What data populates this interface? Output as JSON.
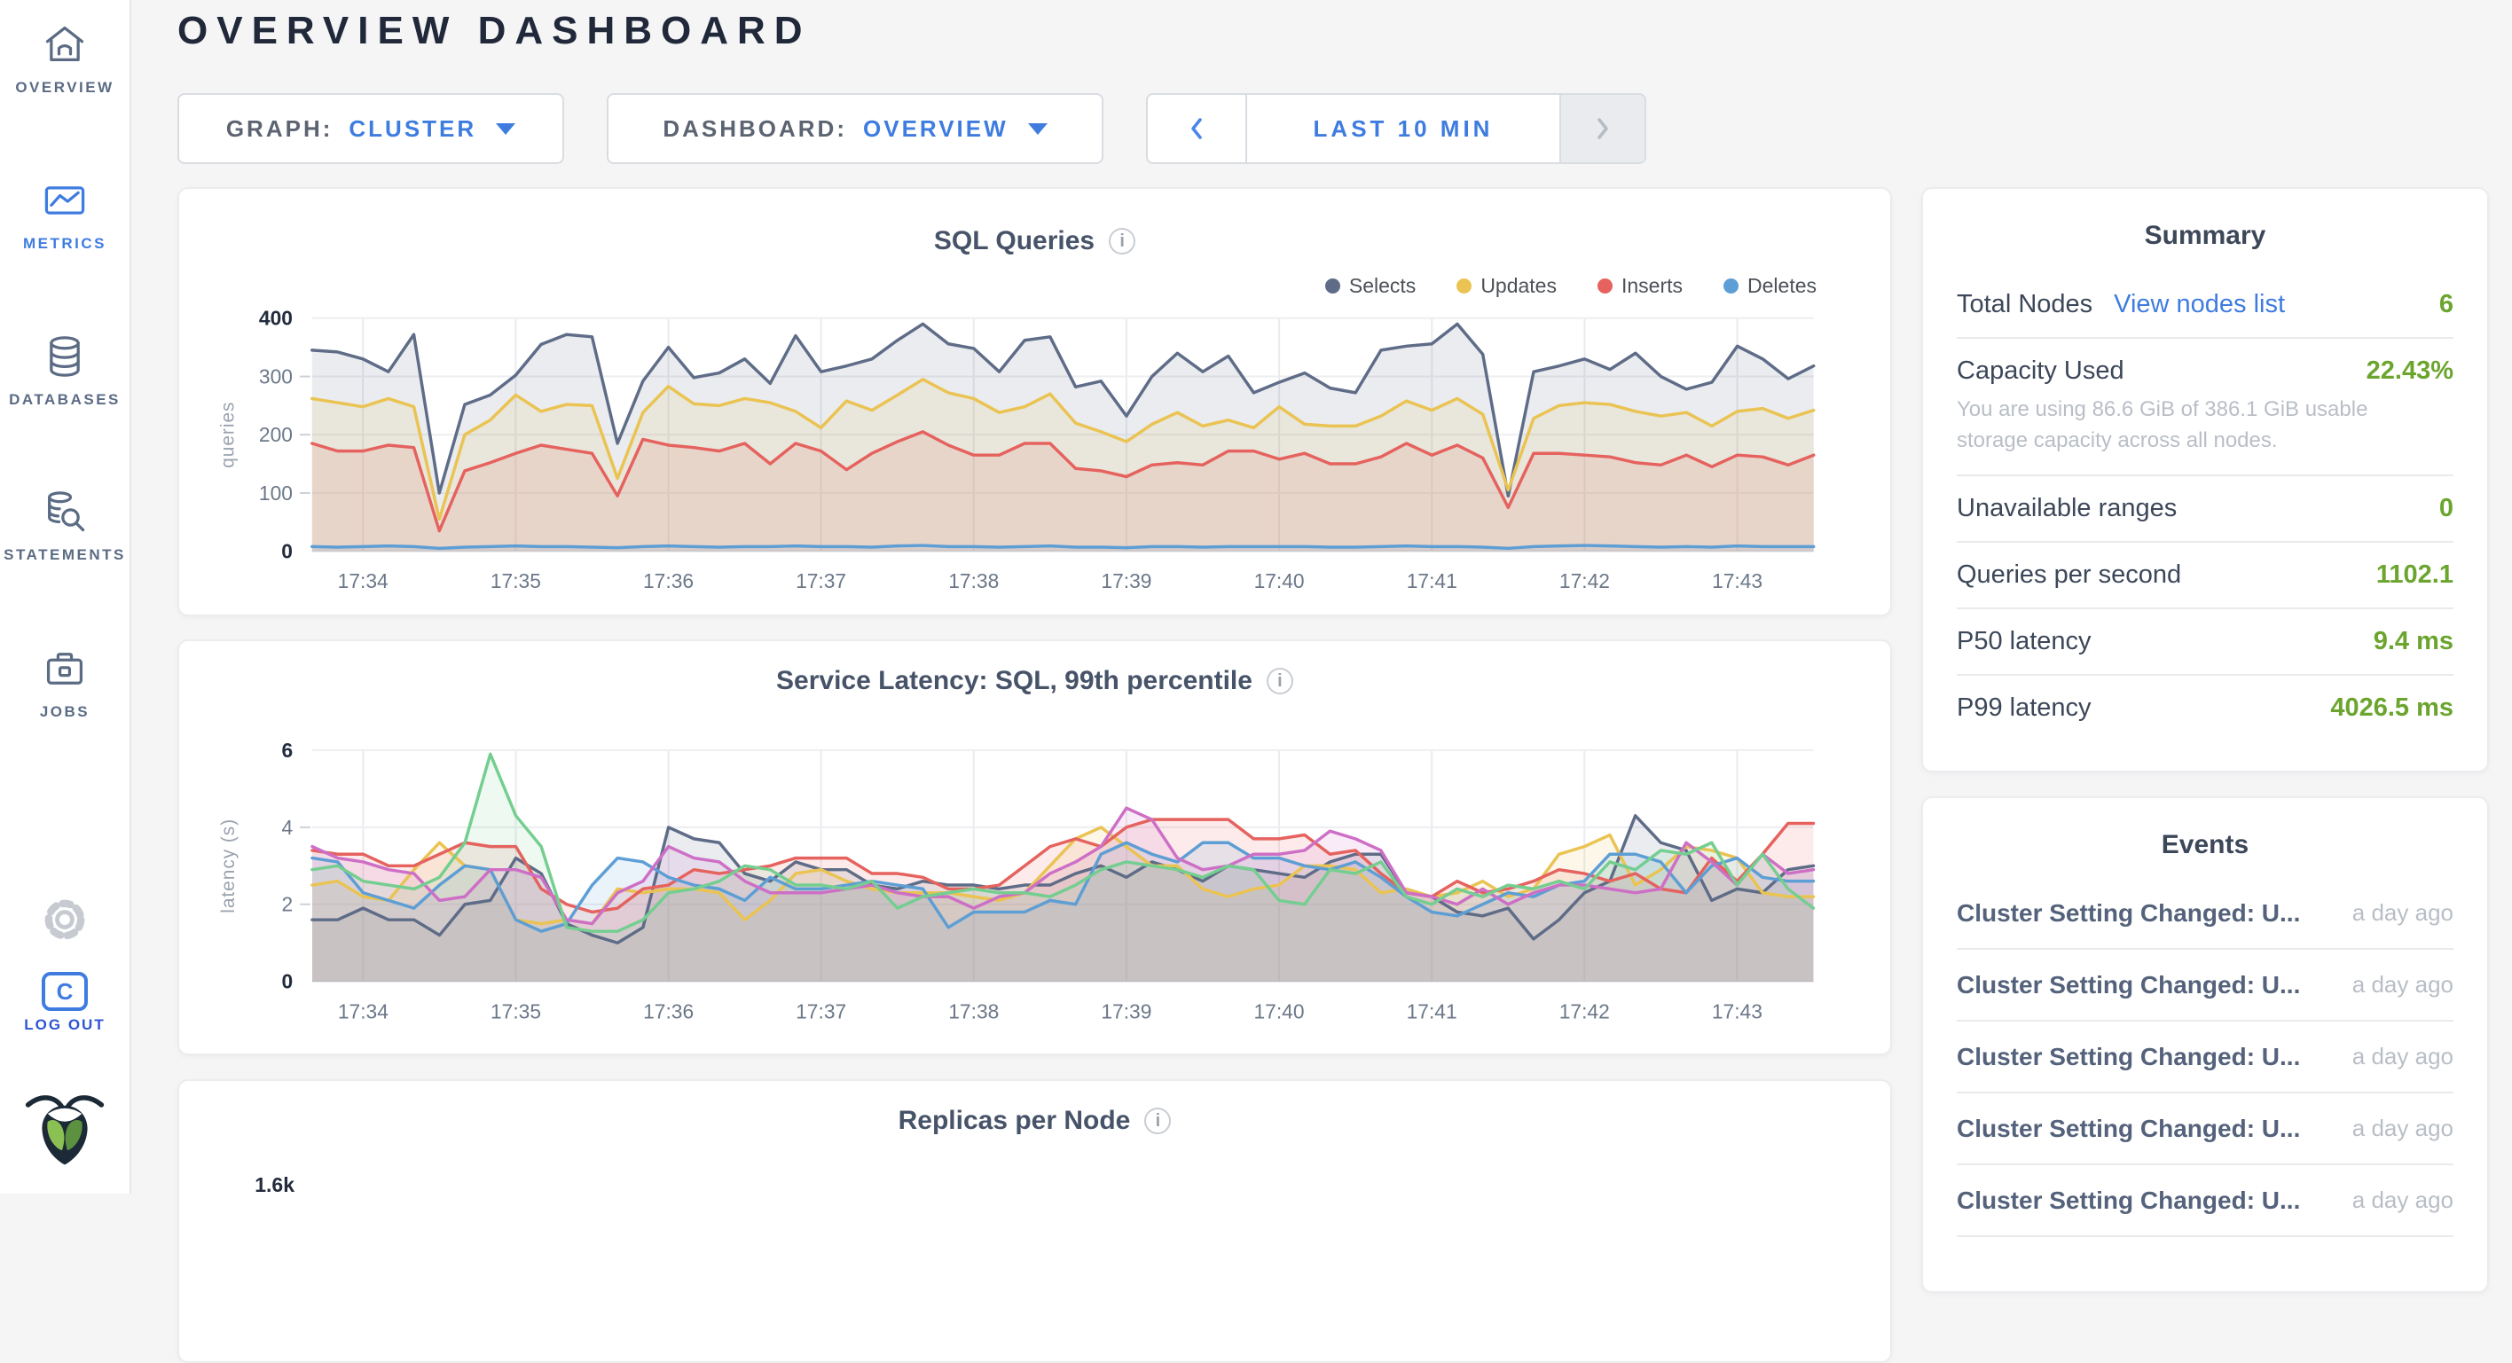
{
  "theme": {
    "accent_blue": "#3e7ce0",
    "value_green": "#6ba52e",
    "text_dark": "#3c4759",
    "muted_gray": "#b9bec6"
  },
  "sidebar": {
    "items": [
      {
        "label": "OVERVIEW",
        "icon": "home-icon",
        "active": false
      },
      {
        "label": "METRICS",
        "icon": "metrics-icon",
        "active": true
      },
      {
        "label": "DATABASES",
        "icon": "database-icon",
        "active": false
      },
      {
        "label": "STATEMENTS",
        "icon": "statements-icon",
        "active": false
      },
      {
        "label": "JOBS",
        "icon": "jobs-icon",
        "active": false
      }
    ],
    "settings_icon": "gear-icon",
    "logout": {
      "label": "LOG OUT",
      "icon_letter": "C"
    },
    "logo_icon": "cockroachdb-logo"
  },
  "header": {
    "title": "OVERVIEW DASHBOARD"
  },
  "controls": {
    "graph_label": "GRAPH:",
    "graph_value": "CLUSTER",
    "dashboard_label": "DASHBOARD:",
    "dashboard_value": "OVERVIEW",
    "time_range": "LAST 10 MIN"
  },
  "summary": {
    "title": "Summary",
    "rows": [
      {
        "label": "Total Nodes",
        "link": "View nodes list",
        "value": "6"
      },
      {
        "label": "Capacity Used",
        "value": "22.43%",
        "subtext": "You are using 86.6 GiB of 386.1 GiB usable storage capacity across all nodes."
      },
      {
        "label": "Unavailable ranges",
        "value": "0"
      },
      {
        "label": "Queries per second",
        "value": "1102.1"
      },
      {
        "label": "P50 latency",
        "value": "9.4 ms"
      },
      {
        "label": "P99 latency",
        "value": "4026.5 ms"
      }
    ]
  },
  "events": {
    "title": "Events",
    "items": [
      {
        "title": "Cluster Setting Changed: U...",
        "time": "a day ago"
      },
      {
        "title": "Cluster Setting Changed: U...",
        "time": "a day ago"
      },
      {
        "title": "Cluster Setting Changed: U...",
        "time": "a day ago"
      },
      {
        "title": "Cluster Setting Changed: U...",
        "time": "a day ago"
      },
      {
        "title": "Cluster Setting Changed: U...",
        "time": "a day ago"
      }
    ]
  },
  "chart_data": [
    {
      "type": "area",
      "title": "SQL Queries",
      "ylabel": "queries",
      "ylim": [
        0,
        400
      ],
      "yticks": [
        0,
        100,
        200,
        300,
        400
      ],
      "grid": true,
      "legend_position": "top-right",
      "x_tick_labels": [
        "17:34",
        "17:35",
        "17:36",
        "17:37",
        "17:38",
        "17:39",
        "17:40",
        "17:41",
        "17:42",
        "17:43"
      ],
      "x_tick_indices": [
        2,
        8,
        14,
        20,
        26,
        32,
        38,
        44,
        50,
        56
      ],
      "series": [
        {
          "name": "Selects",
          "color": "#5f6c87",
          "values": [
            345,
            342,
            330,
            308,
            372,
            100,
            252,
            268,
            302,
            355,
            372,
            368,
            185,
            292,
            350,
            298,
            306,
            330,
            288,
            370,
            308,
            318,
            330,
            362,
            390,
            356,
            348,
            308,
            362,
            368,
            282,
            292,
            232,
            300,
            340,
            308,
            335,
            272,
            290,
            306,
            280,
            272,
            345,
            352,
            356,
            390,
            338,
            95,
            308,
            318,
            330,
            312,
            340,
            300,
            278,
            290,
            352,
            330,
            296,
            318
          ]
        },
        {
          "name": "Updates",
          "color": "#eac352",
          "values": [
            262,
            255,
            248,
            262,
            248,
            55,
            200,
            225,
            268,
            240,
            252,
            250,
            125,
            238,
            283,
            253,
            250,
            262,
            255,
            240,
            212,
            258,
            242,
            268,
            295,
            272,
            262,
            238,
            248,
            270,
            220,
            205,
            188,
            218,
            238,
            215,
            225,
            212,
            248,
            218,
            215,
            215,
            232,
            258,
            242,
            262,
            235,
            105,
            228,
            250,
            255,
            252,
            240,
            232,
            238,
            215,
            240,
            245,
            228,
            242
          ]
        },
        {
          "name": "Inserts",
          "color": "#e5625e",
          "values": [
            185,
            172,
            172,
            182,
            178,
            35,
            138,
            152,
            168,
            182,
            175,
            168,
            95,
            192,
            182,
            178,
            172,
            185,
            150,
            185,
            172,
            140,
            168,
            188,
            205,
            182,
            165,
            165,
            185,
            185,
            142,
            138,
            128,
            148,
            152,
            148,
            172,
            172,
            158,
            168,
            150,
            150,
            162,
            185,
            165,
            182,
            160,
            75,
            168,
            168,
            165,
            162,
            152,
            148,
            165,
            145,
            165,
            162,
            148,
            165
          ]
        },
        {
          "name": "Deletes",
          "color": "#5d9ed5",
          "values": [
            8,
            7,
            8,
            9,
            8,
            5,
            7,
            8,
            9,
            8,
            8,
            7,
            6,
            8,
            9,
            8,
            7,
            8,
            8,
            9,
            8,
            8,
            7,
            9,
            10,
            8,
            8,
            7,
            8,
            9,
            7,
            7,
            6,
            8,
            8,
            7,
            8,
            8,
            8,
            8,
            7,
            7,
            8,
            9,
            8,
            8,
            7,
            5,
            8,
            9,
            10,
            9,
            8,
            7,
            8,
            7,
            9,
            8,
            8,
            8
          ]
        }
      ]
    },
    {
      "type": "area",
      "title": "Service Latency: SQL, 99th percentile",
      "ylabel": "latency (s)",
      "ylim": [
        0,
        6
      ],
      "yticks": [
        0,
        2,
        4,
        6
      ],
      "grid": true,
      "legend_position": "none",
      "x_tick_labels": [
        "17:34",
        "17:35",
        "17:36",
        "17:37",
        "17:38",
        "17:39",
        "17:40",
        "17:41",
        "17:42",
        "17:43"
      ],
      "x_tick_indices": [
        2,
        8,
        14,
        20,
        26,
        32,
        38,
        44,
        50,
        56
      ],
      "series": [
        {
          "color": "#5f6c87",
          "values": [
            1.6,
            1.6,
            1.9,
            1.6,
            1.6,
            1.2,
            2.0,
            2.1,
            3.2,
            2.8,
            1.5,
            1.2,
            1.0,
            1.4,
            4.0,
            3.7,
            3.6,
            2.8,
            2.6,
            3.1,
            2.9,
            2.9,
            2.5,
            2.4,
            2.6,
            2.5,
            2.5,
            2.4,
            2.5,
            2.5,
            2.8,
            3.0,
            2.7,
            3.1,
            2.9,
            2.6,
            3.0,
            2.9,
            2.8,
            2.7,
            3.1,
            3.3,
            3.3,
            2.3,
            2.2,
            1.8,
            1.7,
            1.9,
            1.1,
            1.6,
            2.3,
            2.6,
            4.3,
            3.6,
            3.4,
            2.1,
            2.4,
            2.3,
            2.9,
            3.0
          ]
        },
        {
          "color": "#eac352",
          "values": [
            2.5,
            2.6,
            2.2,
            2.1,
            2.9,
            3.6,
            3.0,
            2.9,
            1.6,
            1.5,
            1.6,
            1.5,
            2.4,
            2.3,
            2.4,
            2.4,
            2.3,
            1.6,
            2.1,
            2.8,
            2.9,
            2.6,
            2.4,
            2.3,
            2.3,
            2.3,
            2.2,
            2.1,
            2.3,
            3.0,
            3.7,
            4.0,
            3.5,
            3.0,
            3.0,
            2.4,
            2.2,
            2.4,
            2.5,
            3.0,
            3.0,
            2.9,
            2.3,
            2.4,
            2.2,
            2.3,
            2.6,
            2.2,
            2.4,
            3.3,
            3.5,
            3.8,
            2.5,
            2.9,
            3.5,
            3.4,
            3.2,
            2.3,
            2.2,
            2.2
          ]
        },
        {
          "color": "#e5625e",
          "values": [
            3.4,
            3.3,
            3.3,
            3.0,
            3.0,
            3.3,
            3.6,
            3.5,
            3.5,
            2.4,
            2.0,
            1.8,
            1.9,
            2.4,
            2.5,
            2.9,
            2.8,
            2.9,
            3.0,
            3.2,
            3.2,
            3.2,
            2.8,
            2.8,
            2.7,
            2.4,
            2.4,
            2.5,
            3.0,
            3.5,
            3.7,
            3.5,
            4.0,
            4.2,
            4.2,
            4.2,
            4.2,
            3.7,
            3.7,
            3.8,
            3.3,
            3.4,
            2.8,
            2.3,
            2.2,
            2.6,
            2.3,
            2.4,
            2.6,
            2.9,
            2.8,
            2.6,
            2.8,
            2.4,
            2.3,
            3.2,
            2.6,
            3.3,
            4.1,
            4.1
          ]
        },
        {
          "color": "#5d9ed5",
          "values": [
            3.2,
            3.1,
            2.3,
            2.1,
            1.9,
            2.5,
            3.0,
            2.9,
            1.6,
            1.3,
            1.5,
            2.5,
            3.2,
            3.1,
            2.7,
            2.5,
            2.4,
            2.1,
            2.7,
            2.4,
            2.4,
            2.5,
            2.6,
            2.5,
            2.4,
            1.4,
            1.8,
            1.8,
            1.8,
            2.1,
            2.0,
            3.3,
            3.6,
            3.3,
            3.1,
            3.6,
            3.6,
            3.2,
            3.2,
            3.0,
            2.9,
            3.1,
            2.7,
            2.2,
            1.8,
            1.7,
            2.0,
            2.3,
            2.2,
            2.5,
            2.6,
            3.3,
            3.3,
            3.1,
            2.3,
            3.0,
            3.2,
            2.7,
            2.6,
            2.6
          ]
        },
        {
          "color": "#ce6fc6",
          "values": [
            3.5,
            3.2,
            3.1,
            2.9,
            2.8,
            2.1,
            2.2,
            2.9,
            2.9,
            2.7,
            1.6,
            1.5,
            2.3,
            2.6,
            3.5,
            3.2,
            3.1,
            2.6,
            2.3,
            2.3,
            2.3,
            2.4,
            2.5,
            2.3,
            2.2,
            2.2,
            1.9,
            2.2,
            2.3,
            2.8,
            3.1,
            3.5,
            4.5,
            4.2,
            3.2,
            2.9,
            3.0,
            3.3,
            3.3,
            3.4,
            3.9,
            3.7,
            3.4,
            2.3,
            2.2,
            2.0,
            2.4,
            2.0,
            2.3,
            2.5,
            2.5,
            2.4,
            2.3,
            2.4,
            3.6,
            3.1,
            2.5,
            3.3,
            2.8,
            2.9
          ]
        },
        {
          "color": "#74ce90",
          "values": [
            2.9,
            3.0,
            2.6,
            2.5,
            2.4,
            2.7,
            3.6,
            5.9,
            4.3,
            3.5,
            1.4,
            1.3,
            1.3,
            1.6,
            2.3,
            2.4,
            2.6,
            3.0,
            2.9,
            2.5,
            2.5,
            2.4,
            2.6,
            1.9,
            2.2,
            2.3,
            2.4,
            2.3,
            2.3,
            2.2,
            2.5,
            2.9,
            3.1,
            3.0,
            2.9,
            2.7,
            3.0,
            2.9,
            2.1,
            2.0,
            2.9,
            2.8,
            3.1,
            2.2,
            2.0,
            2.4,
            2.2,
            2.5,
            2.4,
            2.6,
            2.4,
            3.1,
            2.9,
            3.4,
            3.3,
            3.6,
            2.5,
            3.3,
            2.4,
            1.9
          ]
        }
      ]
    },
    {
      "type": "area",
      "title": "Replicas per Node",
      "ytick_top": "1.6k"
    }
  ]
}
